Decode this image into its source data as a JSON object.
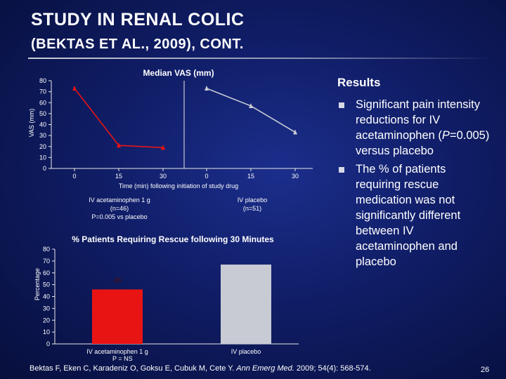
{
  "slide": {
    "title_line1": "STUDY IN RENAL COLIC",
    "title_line2": "(BEKTAS ET AL., 2009), CONT.",
    "results_heading": "Results",
    "bullets": [
      {
        "segments": [
          {
            "text": "Significant pain intensity reductions for IV acetaminophen ("
          },
          {
            "text": "P",
            "italic": true
          },
          {
            "text": "=0.005) versus placebo"
          }
        ]
      },
      {
        "segments": [
          {
            "text": "The % of patients requiring rescue medication was not significantly different between IV acetaminophen and placebo"
          }
        ]
      }
    ],
    "citation": {
      "before": "Bektas F, Eken C, Karadeniz O, Goksu E, Cubuk M, Cete Y. ",
      "journal": "Ann Emerg Med.",
      "after": " 2009; 54(4): 568-574."
    },
    "page_number": "26",
    "colors": {
      "acetaminophen": "#e81414",
      "placebo": "#c8cbd4",
      "title_rule": "#c9ccd8"
    }
  },
  "chart_data": [
    {
      "type": "line",
      "title": "Median VAS (mm)",
      "ylabel": "VAS (mm)",
      "xlabel": "Time (min) following initiation of study drug",
      "ylim": [
        0,
        80
      ],
      "yticks": [
        0,
        10,
        20,
        30,
        40,
        50,
        60,
        70,
        80
      ],
      "grid": false,
      "series": [
        {
          "name": "IV acetaminophen 1 g",
          "note": "(n=46)",
          "note2": "P=0.005 vs placebo",
          "color": "#e81414",
          "x": [
            "0",
            "15",
            "30"
          ],
          "values": [
            73,
            21,
            19
          ]
        },
        {
          "name": "IV placebo",
          "note": "(n=51)",
          "color": "#c8cbd4",
          "x": [
            "0",
            "15",
            "30"
          ],
          "values": [
            73,
            57,
            33
          ]
        }
      ]
    },
    {
      "type": "bar",
      "title": "% Patients Requiring Rescue following 30 Minutes",
      "ylabel": "Percentage",
      "ylim": [
        0,
        80
      ],
      "yticks": [
        0,
        10,
        20,
        30,
        40,
        50,
        60,
        70,
        80
      ],
      "categories": [
        "IV acetaminophen 1 g",
        "IV placebo"
      ],
      "values": [
        46,
        67
      ],
      "colors": [
        "#e81414",
        "#c8cbd4"
      ],
      "data_labels": [
        "46",
        ""
      ],
      "annotation": "P = NS"
    }
  ]
}
